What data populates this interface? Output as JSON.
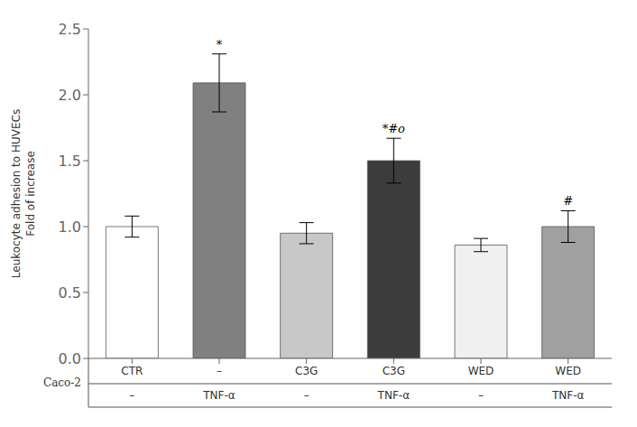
{
  "chart_data": {
    "type": "bar",
    "categories": [
      "CTR",
      "–",
      "C3G",
      "C3G",
      "WED",
      "WED"
    ],
    "categories_row2": [
      "–",
      "TNF-α",
      "–",
      "TNF-α",
      "–",
      "TNF-α"
    ],
    "category_title": "Caco-2",
    "values": [
      1.0,
      2.09,
      0.95,
      1.5,
      0.86,
      1.0
    ],
    "errors": [
      0.08,
      0.22,
      0.08,
      0.17,
      0.05,
      0.12
    ],
    "colors": [
      "#ffffff",
      "#808080",
      "#c8c8c8",
      "#3c3c3c",
      "#f0f0f0",
      "#a0a0a0"
    ],
    "annotations": [
      null,
      "*",
      null,
      "*#o",
      null,
      "#"
    ],
    "ylabel": "Leukocyte adhesion to HUVECs\nFold of increase",
    "ylim": [
      0.0,
      2.5
    ],
    "yticks": [
      {
        "value": 0.0,
        "label": "0.0"
      },
      0.5,
      {
        "value": 1.0,
        "label": "1.0"
      },
      1.5,
      {
        "value": 2.0,
        "label": "2.0"
      },
      2.5
    ],
    "grid": false
  }
}
